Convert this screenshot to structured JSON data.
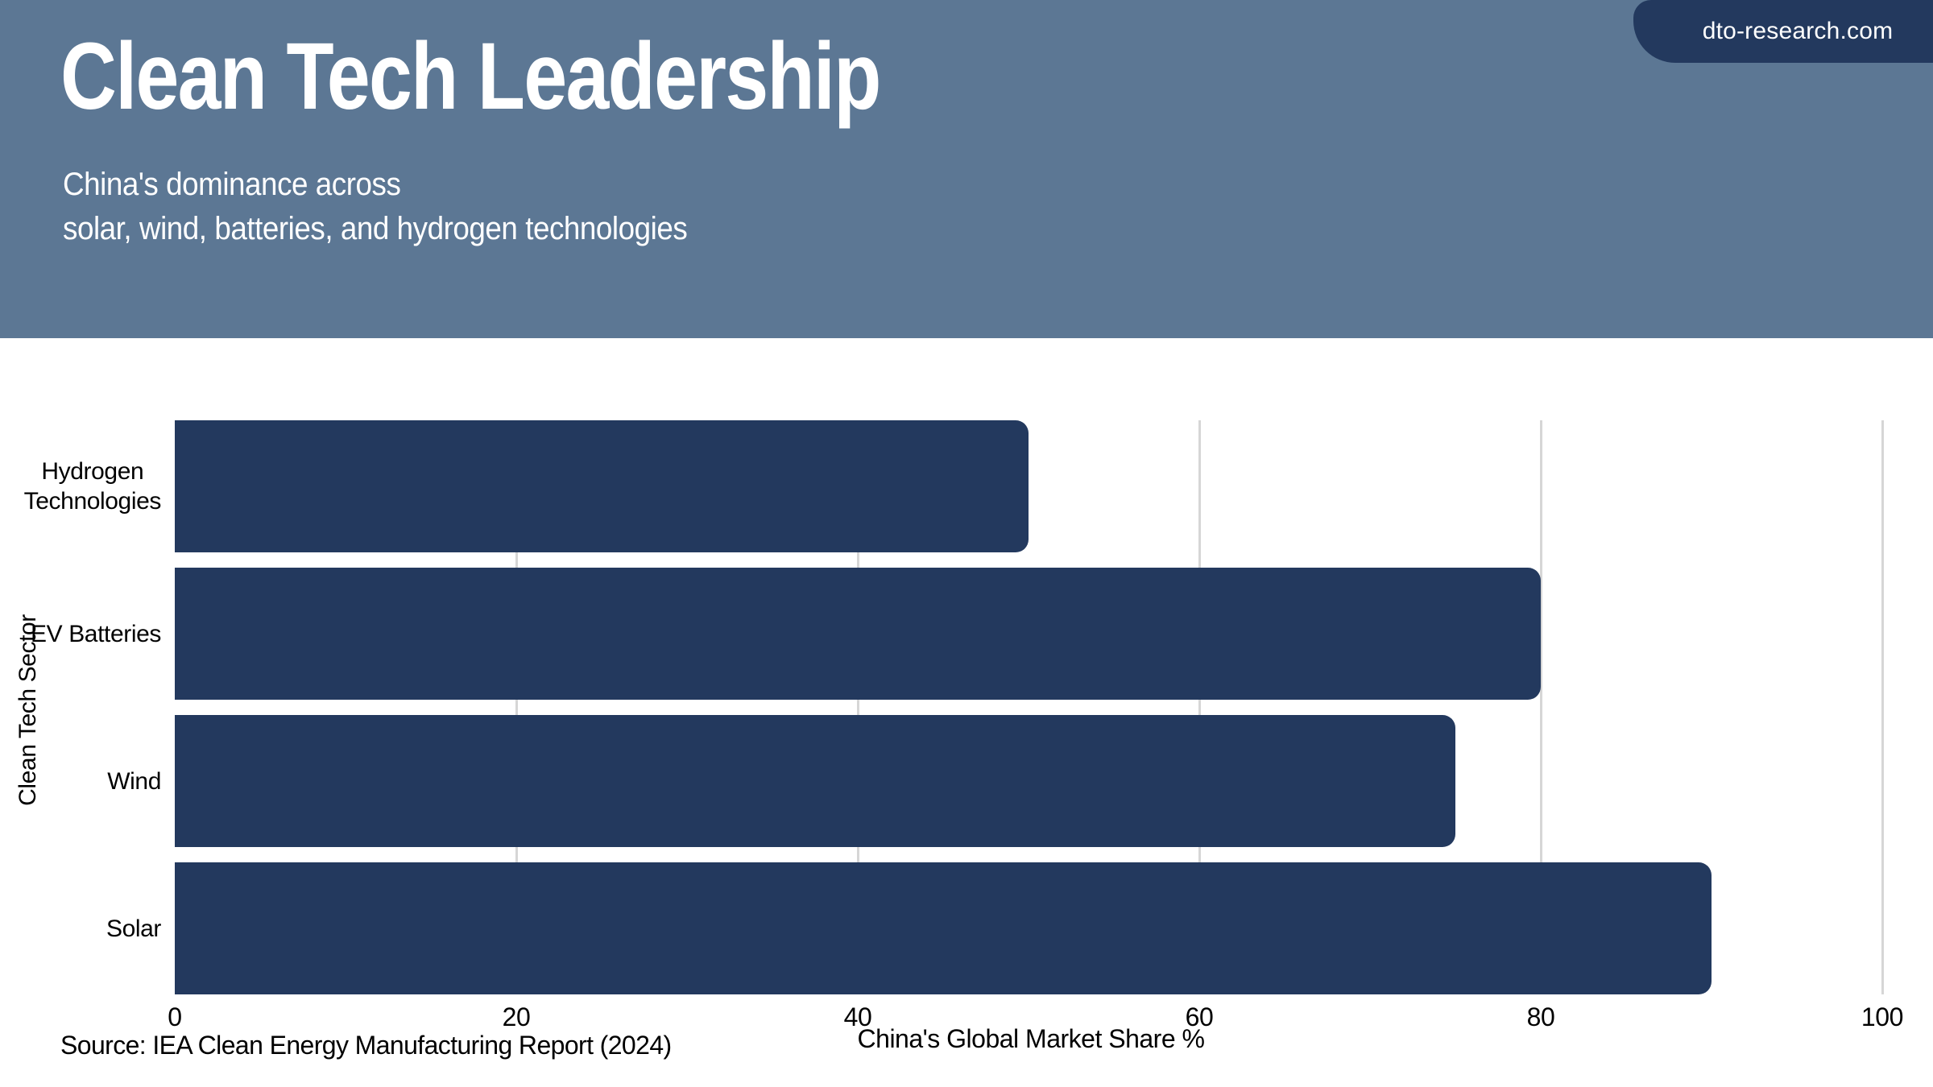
{
  "header": {
    "banner_color": "#5C7794",
    "text_color": "#FFFFFF",
    "badge": {
      "label": "dto-research.com",
      "color": "#23395E",
      "text_color": "#FFFFFF"
    },
    "title": "Clean Tech Leadership",
    "subtitle_lines": [
      "China's dominance across",
      "solar, wind, batteries, and hydrogen technologies"
    ]
  },
  "chart_data": {
    "type": "bar",
    "orientation": "horizontal",
    "title": "Clean Tech Leadership",
    "subtitle": "China's dominance across solar, wind, batteries, and hydrogen technologies",
    "categories": [
      "Hydrogen\nTechnologies",
      "EV Batteries",
      "Wind",
      "Solar"
    ],
    "values": [
      50,
      80,
      75,
      90
    ],
    "xlabel": "China's Global Market Share %",
    "ylabel": "Clean Tech Sector",
    "xlim": [
      0,
      100
    ],
    "xticks": [
      0,
      20,
      40,
      60,
      80,
      100
    ],
    "grid": "vertical gridlines at x ticks, light gray, behind bars",
    "legend": "none",
    "bar_color": "#23395E",
    "gridline_color": "#D6D6D6",
    "label_color": "#000000"
  },
  "footer": {
    "source": "Source: IEA Clean Energy Manufacturing Report (2024)"
  }
}
